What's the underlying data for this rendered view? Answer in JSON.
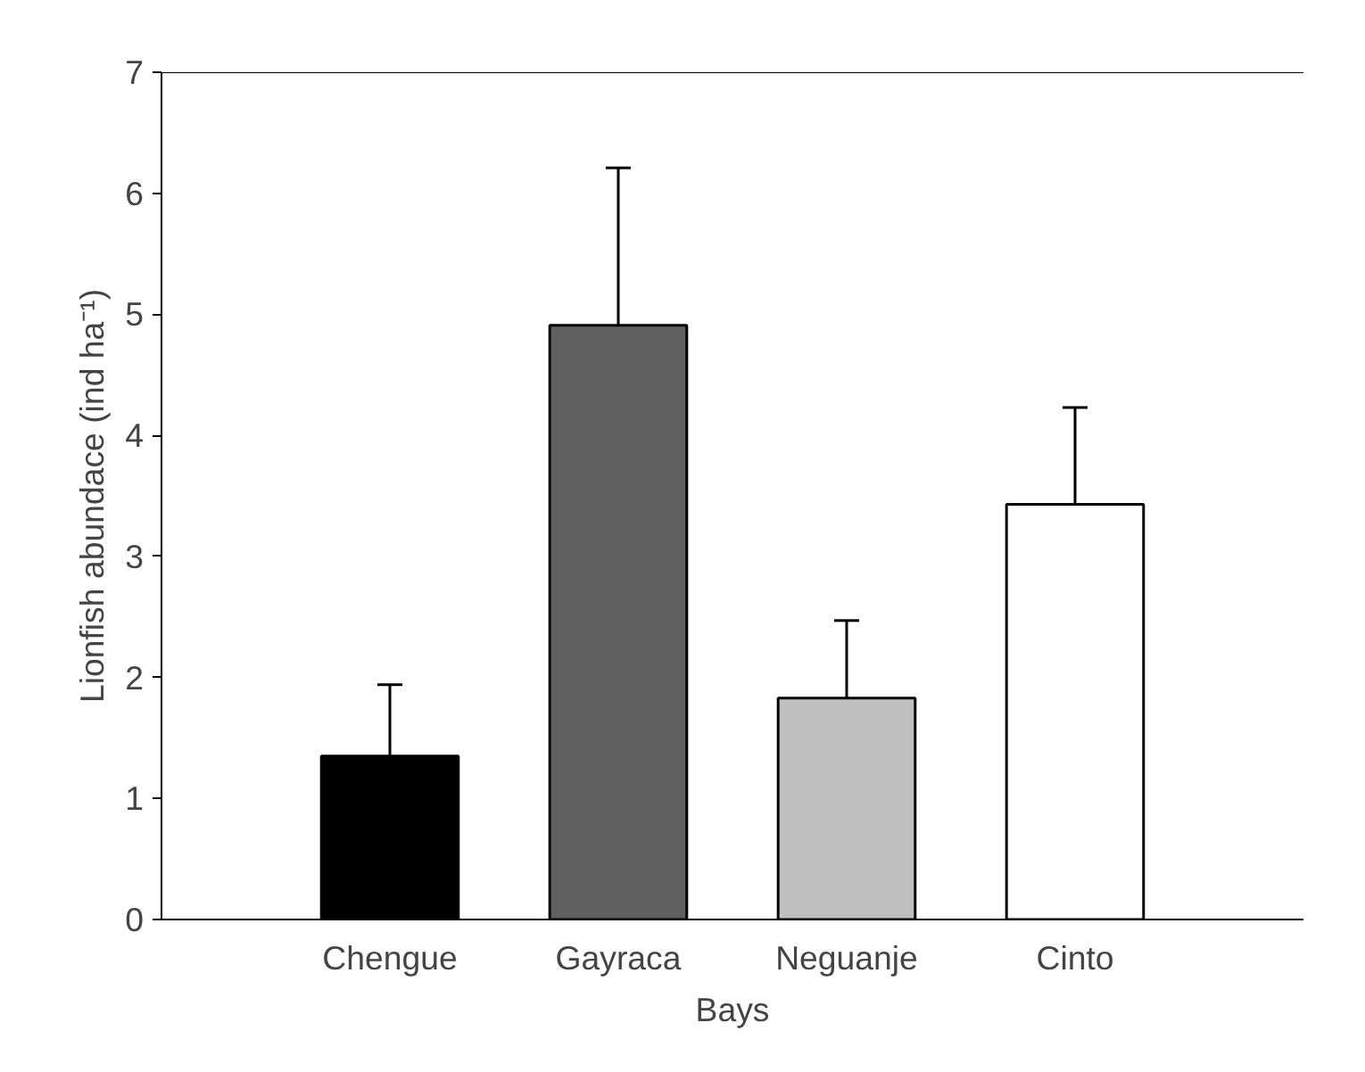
{
  "chart_data": {
    "type": "bar",
    "xlabel": "Bays",
    "ylabel": "Lionfish abundace (ind ha⁻¹)",
    "categories": [
      "Chengue",
      "Gayraca",
      "Neguanje",
      "Cinto"
    ],
    "values": [
      1.35,
      4.91,
      1.83,
      3.43
    ],
    "errors": [
      [
        1.35,
        1.94
      ],
      [
        4.91,
        6.21
      ],
      [
        1.83,
        2.47
      ],
      [
        3.43,
        4.23
      ]
    ],
    "colors": [
      "#000000",
      "#606060",
      "#c0c0c0",
      "#ffffff"
    ],
    "ylim": [
      0,
      7
    ],
    "yticks": [
      0,
      1,
      2,
      3,
      4,
      5,
      6,
      7
    ],
    "grid": false
  }
}
